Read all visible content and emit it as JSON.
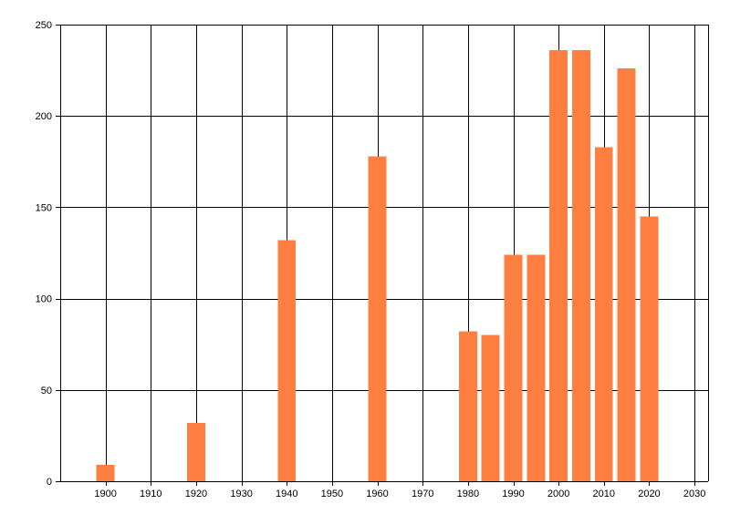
{
  "chart_data": {
    "type": "bar",
    "title": "",
    "xlabel": "",
    "ylabel": "",
    "xlim": [
      1890,
      2033
    ],
    "ylim": [
      0,
      250
    ],
    "grid": true,
    "bar_color": "#ff7f40",
    "x_ticks": [
      1900,
      1910,
      1920,
      1930,
      1940,
      1950,
      1960,
      1970,
      1980,
      1990,
      2000,
      2010,
      2020,
      2030
    ],
    "y_ticks": [
      0,
      50,
      100,
      150,
      200,
      250
    ],
    "x_tick_labels": [
      "1900",
      "1910",
      "1920",
      "1930",
      "1940",
      "1950",
      "1960",
      "1970",
      "1980",
      "1990",
      "2000",
      "2010",
      "2020",
      "2030"
    ],
    "y_tick_labels": [
      "0",
      "50",
      "100",
      "150",
      "200",
      "250"
    ],
    "series": [
      {
        "x": [
          1900,
          1920,
          1940,
          1960,
          1980,
          1985,
          1990,
          1995,
          2000,
          2005,
          2010,
          2015,
          2020
        ],
        "values": [
          9,
          32,
          132,
          178,
          82,
          80,
          124,
          124,
          236,
          236,
          183,
          226,
          145
        ]
      }
    ]
  }
}
